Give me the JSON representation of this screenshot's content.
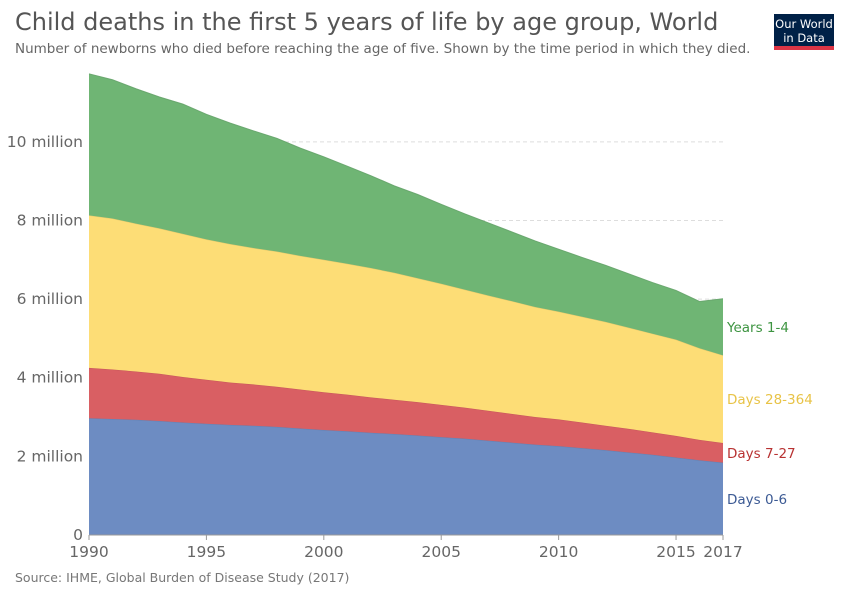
{
  "header": {
    "title": "Child deaths in the first 5 years of life by age group, World",
    "subtitle": "Number of newborns who died before reaching the age of five. Shown by the time period in which they died.",
    "logo_line1": "Our World",
    "logo_line2": "in Data"
  },
  "footer": {
    "source": "Source: IHME, Global Burden of Disease Study (2017)"
  },
  "chart_data": {
    "type": "area",
    "stacked": true,
    "title": "Child deaths in the first 5 years of life by age group, World",
    "x": [
      1990,
      1991,
      1992,
      1993,
      1994,
      1995,
      1996,
      1997,
      1998,
      1999,
      2000,
      2001,
      2002,
      2003,
      2004,
      2005,
      2006,
      2007,
      2008,
      2009,
      2010,
      2011,
      2012,
      2013,
      2014,
      2015,
      2016,
      2017
    ],
    "xticks": [
      "1990",
      "1995",
      "2000",
      "2005",
      "2010",
      "2015",
      "2017"
    ],
    "xtick_values": [
      1990,
      1995,
      2000,
      2005,
      2010,
      2015,
      2017
    ],
    "yticks": [
      "0",
      "2 million",
      "4 million",
      "6 million",
      "8 million",
      "10 million"
    ],
    "ytick_values": [
      0,
      2000000,
      4000000,
      6000000,
      8000000,
      10000000
    ],
    "ylim": [
      0,
      11700000
    ],
    "xlim": [
      1990,
      2017
    ],
    "grid": "horizontal dashed",
    "legend": "right, labels at series ends",
    "series": [
      {
        "name": "Days 0-6",
        "color": "#6d8cc2",
        "label_color": "#3c5a94",
        "values": [
          2970000,
          2950000,
          2930000,
          2900000,
          2860000,
          2830000,
          2800000,
          2780000,
          2750000,
          2710000,
          2670000,
          2640000,
          2600000,
          2570000,
          2530000,
          2490000,
          2450000,
          2400000,
          2350000,
          2300000,
          2260000,
          2210000,
          2160000,
          2100000,
          2040000,
          1970000,
          1900000,
          1840000
        ]
      },
      {
        "name": "Days 7-27",
        "color": "#d95f63",
        "label_color": "#b83232",
        "values": [
          1280000,
          1260000,
          1230000,
          1200000,
          1160000,
          1120000,
          1080000,
          1050000,
          1020000,
          990000,
          960000,
          930000,
          900000,
          870000,
          850000,
          820000,
          790000,
          760000,
          730000,
          700000,
          680000,
          650000,
          620000,
          600000,
          570000,
          550000,
          520000,
          500000
        ]
      },
      {
        "name": "Days 28-364",
        "color": "#fddd76",
        "label_color": "#e8c347",
        "values": [
          3880000,
          3840000,
          3760000,
          3700000,
          3640000,
          3570000,
          3520000,
          3470000,
          3440000,
          3400000,
          3370000,
          3330000,
          3290000,
          3230000,
          3150000,
          3080000,
          3000000,
          2930000,
          2870000,
          2800000,
          2740000,
          2690000,
          2640000,
          2570000,
          2510000,
          2450000,
          2330000,
          2230000
        ]
      },
      {
        "name": "Years 1-4",
        "color": "#6fb574",
        "label_color": "#3d9441",
        "values": [
          3600000,
          3530000,
          3430000,
          3340000,
          3300000,
          3180000,
          3080000,
          2980000,
          2880000,
          2740000,
          2620000,
          2480000,
          2350000,
          2210000,
          2130000,
          2020000,
          1930000,
          1850000,
          1760000,
          1680000,
          1590000,
          1510000,
          1440000,
          1370000,
          1300000,
          1250000,
          1190000,
          1440000
        ]
      }
    ]
  }
}
